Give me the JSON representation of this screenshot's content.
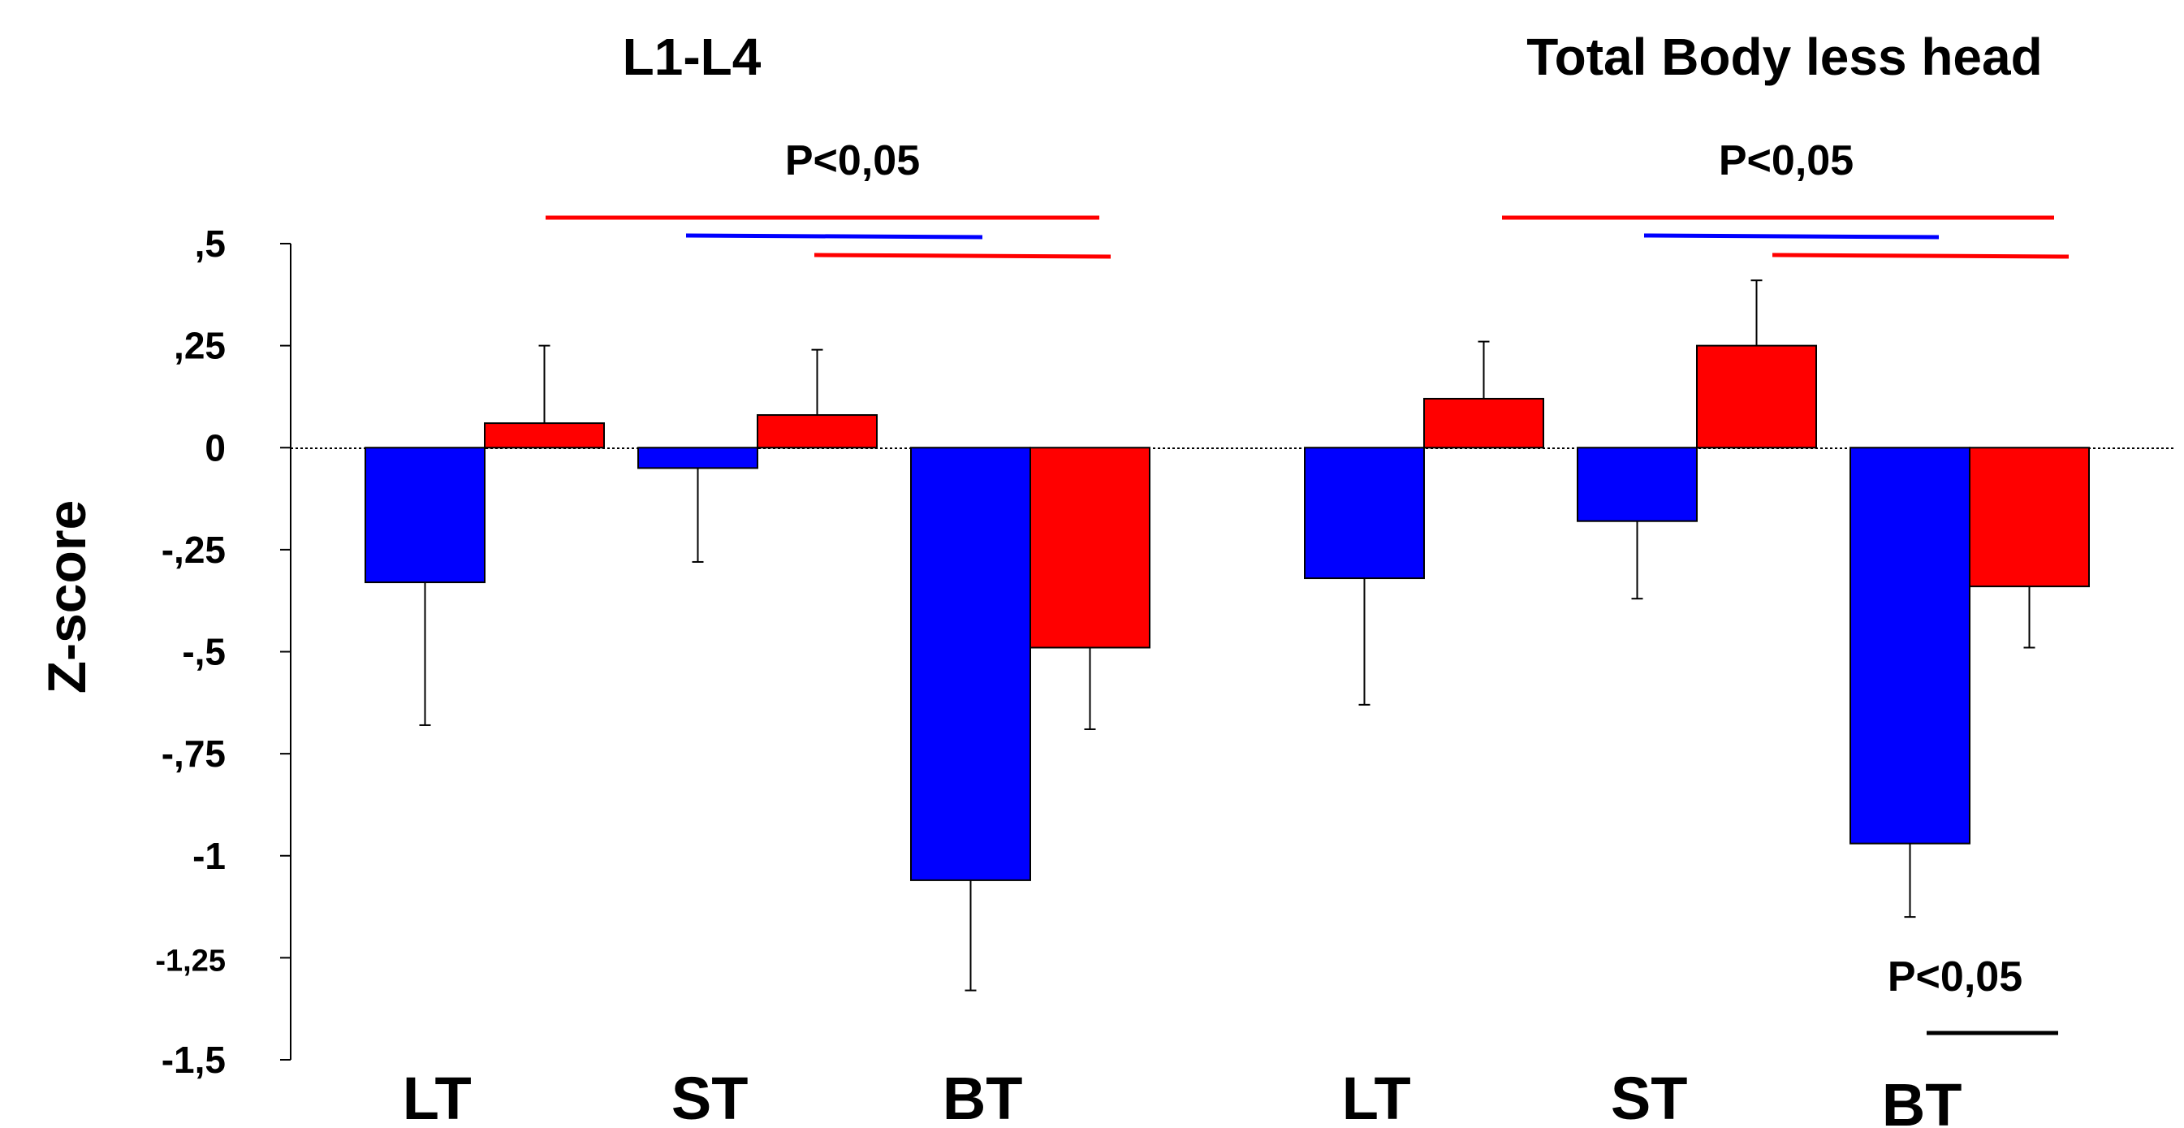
{
  "chart_data": {
    "type": "bar",
    "ylabel": "Z-score",
    "ylim": [
      -1.5,
      0.5
    ],
    "yticks": [
      {
        "value": 0.5,
        "label": ",5"
      },
      {
        "value": 0.25,
        "label": ",25"
      },
      {
        "value": 0,
        "label": "0"
      },
      {
        "value": -0.25,
        "label": "-,25"
      },
      {
        "value": -0.5,
        "label": "-,5"
      },
      {
        "value": -0.75,
        "label": "-,75"
      },
      {
        "value": -1,
        "label": "-1"
      },
      {
        "value": -1.25,
        "label": "-1,25"
      },
      {
        "value": -1.5,
        "label": "-1,5"
      }
    ],
    "colors": {
      "series_a": "#0000ff",
      "series_b": "#ff0000",
      "sig_black": "#000000"
    },
    "panels": [
      {
        "title": "L1-L4",
        "categories": [
          "LT",
          "ST",
          "BT"
        ],
        "series": [
          {
            "color": "#0000ff",
            "values": [
              -0.33,
              -0.05,
              -1.06
            ],
            "error_tips": [
              -0.68,
              -0.28,
              -1.33
            ]
          },
          {
            "color": "#ff0000",
            "values": [
              0.06,
              0.08,
              -0.49
            ],
            "error_tips": [
              0.25,
              0.24,
              -0.69
            ]
          }
        ],
        "annotations": [
          {
            "text": "P<0,05",
            "placement": "above bars"
          }
        ]
      },
      {
        "title": "Total Body less head",
        "categories": [
          "LT",
          "ST",
          "BT"
        ],
        "series": [
          {
            "color": "#0000ff",
            "values": [
              -0.32,
              -0.18,
              -0.97
            ],
            "error_tips": [
              -0.63,
              -0.37,
              -1.15
            ]
          },
          {
            "color": "#ff0000",
            "values": [
              0.12,
              0.25,
              -0.34
            ],
            "error_tips": [
              0.26,
              0.41,
              -0.49
            ]
          }
        ],
        "annotations": [
          {
            "text": "P<0,05",
            "placement": "above bars"
          },
          {
            "text": "P<0,05",
            "placement": "below BT bars"
          }
        ]
      }
    ]
  }
}
